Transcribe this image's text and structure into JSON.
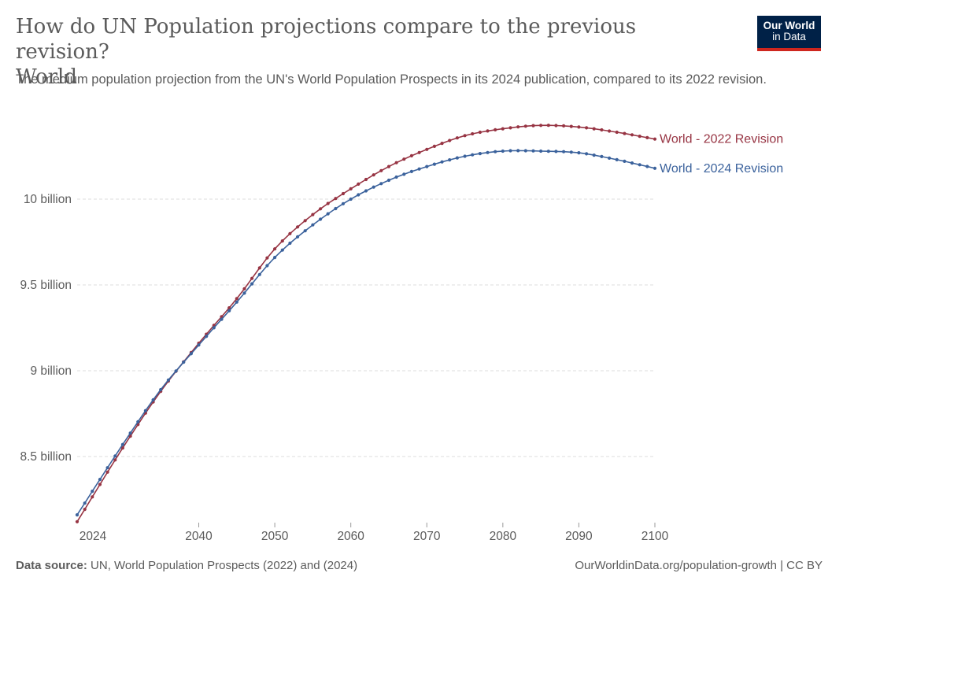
{
  "header": {
    "title_line1": "How do UN Population projections compare to the previous revision?",
    "title_line2": "World",
    "subtitle": "The medium population projection from the UN's World Population Prospects in its 2024 publication, compared to its 2022 revision."
  },
  "logo": {
    "line1": "Our World",
    "line2": "in Data"
  },
  "footer": {
    "source_label": "Data source:",
    "source_text": " UN, World Population Prospects (2022) and (2024)",
    "license": "OurWorldinData.org/population-growth | CC BY"
  },
  "colors": {
    "series_2022": "#973443",
    "series_2024": "#3b629c",
    "grid": "#dddddd",
    "text": "#5b5b5b"
  },
  "chart_data": {
    "type": "line",
    "title": "How do UN Population projections compare to the previous revision?",
    "subtitle": "The medium population projection from the UN's World Population Prospects in its 2024 publication, compared to its 2022 revision.",
    "xlabel": "",
    "ylabel": "",
    "xlim": [
      2024,
      2100
    ],
    "ylim": [
      8.0,
      10.6
    ],
    "y_unit": "billion",
    "grid": "horizontal dashed",
    "legend": "end-of-line labels",
    "x_ticks": [
      "2024",
      "2040",
      "2050",
      "2060",
      "2070",
      "2080",
      "2090",
      "2100"
    ],
    "y_ticks": [
      {
        "value": 8.5,
        "label": "8.5 billion"
      },
      {
        "value": 9.0,
        "label": "9 billion"
      },
      {
        "value": 9.5,
        "label": "9.5 billion"
      },
      {
        "value": 10.0,
        "label": "10 billion"
      }
    ],
    "series": [
      {
        "name": "World - 2022 Revision",
        "color": "#973443",
        "points": [
          [
            2024,
            8.12
          ],
          [
            2030,
            8.55
          ],
          [
            2035,
            8.88
          ],
          [
            2040,
            9.16
          ],
          [
            2045,
            9.42
          ],
          [
            2050,
            9.71
          ],
          [
            2055,
            9.91
          ],
          [
            2060,
            10.06
          ],
          [
            2065,
            10.19
          ],
          [
            2070,
            10.29
          ],
          [
            2075,
            10.37
          ],
          [
            2080,
            10.41
          ],
          [
            2085,
            10.43
          ],
          [
            2090,
            10.42
          ],
          [
            2095,
            10.39
          ],
          [
            2100,
            10.35
          ]
        ]
      },
      {
        "name": "World - 2024 Revision",
        "color": "#3b629c",
        "points": [
          [
            2024,
            8.16
          ],
          [
            2030,
            8.57
          ],
          [
            2035,
            8.89
          ],
          [
            2040,
            9.15
          ],
          [
            2045,
            9.4
          ],
          [
            2050,
            9.66
          ],
          [
            2055,
            9.85
          ],
          [
            2060,
            10.0
          ],
          [
            2065,
            10.11
          ],
          [
            2070,
            10.19
          ],
          [
            2075,
            10.25
          ],
          [
            2080,
            10.28
          ],
          [
            2085,
            10.28
          ],
          [
            2090,
            10.27
          ],
          [
            2095,
            10.23
          ],
          [
            2100,
            10.18
          ]
        ]
      }
    ]
  }
}
